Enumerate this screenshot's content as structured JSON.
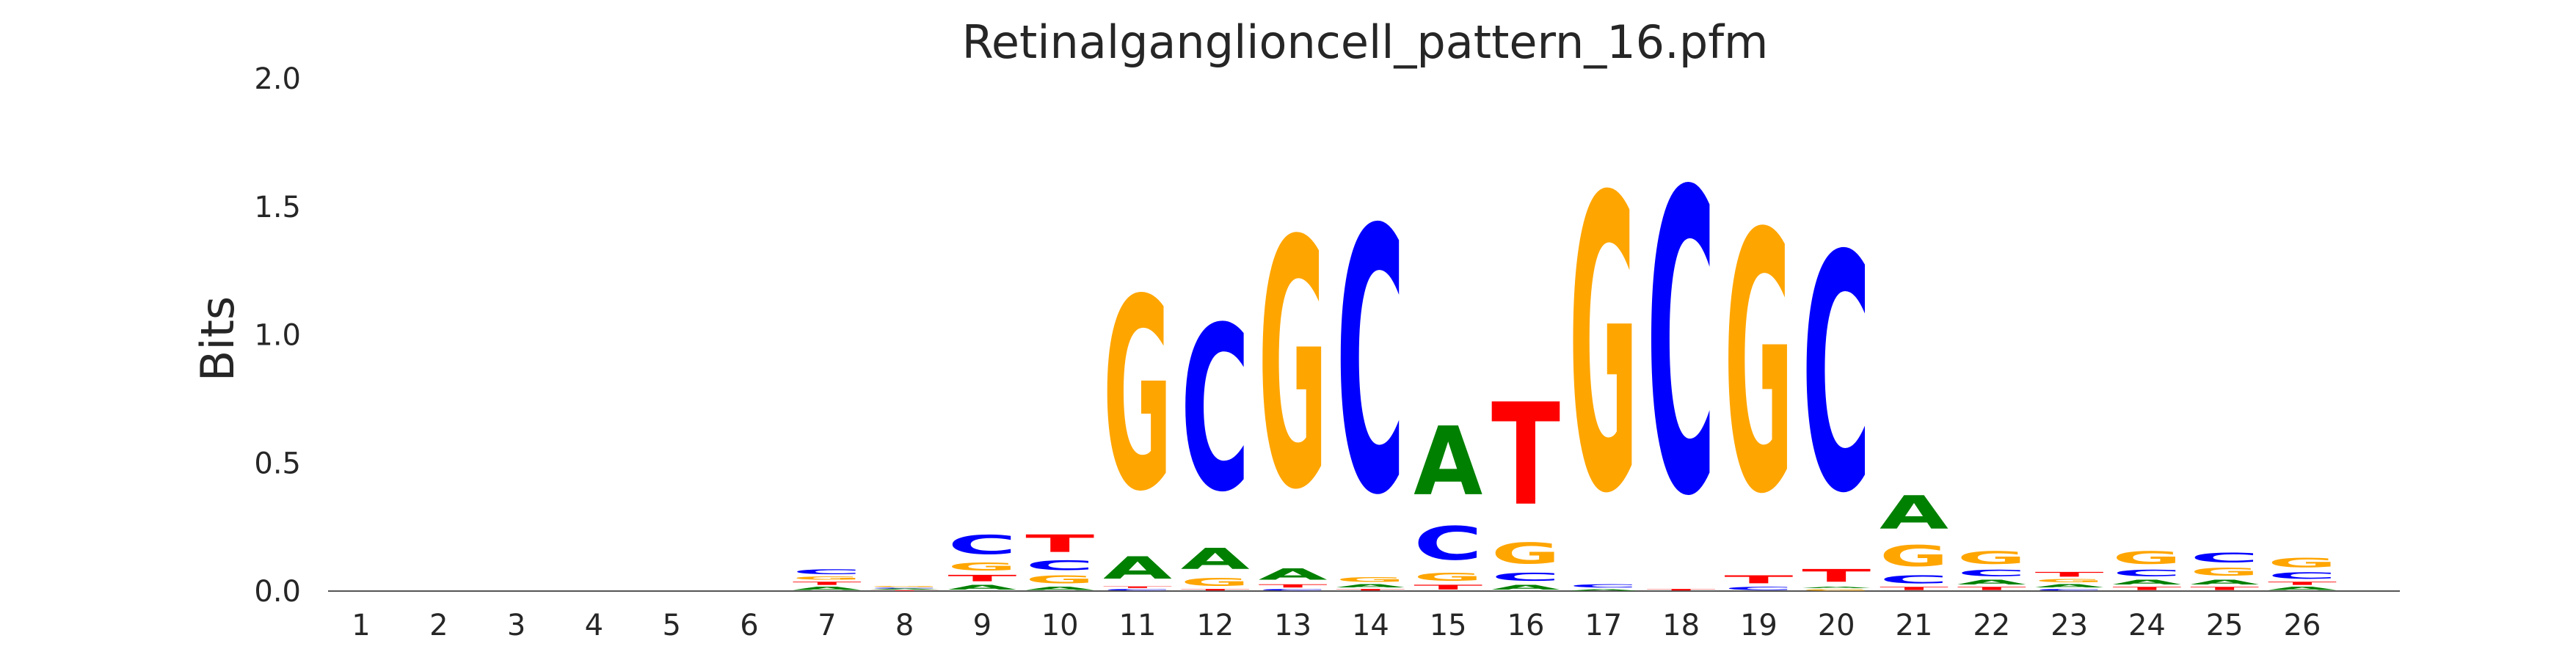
{
  "chart_data": {
    "type": "sequence-logo",
    "title": "Retinalganglioncell_pattern_16.pfm",
    "xlabel": "",
    "ylabel": "Bits",
    "ylim": [
      0,
      2.0
    ],
    "yticks": [
      "0.0",
      "0.5",
      "1.0",
      "1.5",
      "2.0"
    ],
    "xticks": [
      "1",
      "2",
      "3",
      "4",
      "5",
      "6",
      "7",
      "8",
      "9",
      "10",
      "11",
      "12",
      "13",
      "14",
      "15",
      "16",
      "17",
      "18",
      "19",
      "20",
      "21",
      "22",
      "23",
      "24",
      "25",
      "26"
    ],
    "grid": false,
    "letter_colors": {
      "A": "#008000",
      "C": "#0000ff",
      "G": "#ffa500",
      "T": "#ff0000"
    },
    "positions": [
      {
        "pos": 1,
        "stack": []
      },
      {
        "pos": 2,
        "stack": []
      },
      {
        "pos": 3,
        "stack": []
      },
      {
        "pos": 4,
        "stack": []
      },
      {
        "pos": 5,
        "stack": []
      },
      {
        "pos": 6,
        "stack": []
      },
      {
        "pos": 7,
        "stack": [
          {
            "b": "A",
            "h": 0.02
          },
          {
            "b": "T",
            "h": 0.02
          },
          {
            "b": "G",
            "h": 0.02
          },
          {
            "b": "C",
            "h": 0.03
          }
        ]
      },
      {
        "pos": 8,
        "stack": [
          {
            "b": "T",
            "h": 0.004
          },
          {
            "b": "A",
            "h": 0.005
          },
          {
            "b": "C",
            "h": 0.005
          },
          {
            "b": "G",
            "h": 0.006
          }
        ]
      },
      {
        "pos": 9,
        "stack": [
          {
            "b": "A",
            "h": 0.03
          },
          {
            "b": "T",
            "h": 0.04
          },
          {
            "b": "G",
            "h": 0.05
          },
          {
            "b": "C",
            "h": 0.12
          }
        ]
      },
      {
        "pos": 10,
        "stack": [
          {
            "b": "A",
            "h": 0.02
          },
          {
            "b": "G",
            "h": 0.05
          },
          {
            "b": "C",
            "h": 0.06
          },
          {
            "b": "T",
            "h": 0.11
          }
        ]
      },
      {
        "pos": 11,
        "stack": [
          {
            "b": "C",
            "h": 0.01
          },
          {
            "b": "T",
            "h": 0.01
          },
          {
            "b": "A",
            "h": 0.14
          },
          {
            "b": "G",
            "h": 1.2
          }
        ]
      },
      {
        "pos": 12,
        "stack": [
          {
            "b": "T",
            "h": 0.01
          },
          {
            "b": "G",
            "h": 0.05
          },
          {
            "b": "A",
            "h": 0.13
          },
          {
            "b": "C",
            "h": 1.03
          }
        ]
      },
      {
        "pos": 13,
        "stack": [
          {
            "b": "C",
            "h": 0.01
          },
          {
            "b": "T",
            "h": 0.02
          },
          {
            "b": "A",
            "h": 0.07
          },
          {
            "b": "G",
            "h": 1.55
          }
        ]
      },
      {
        "pos": 14,
        "stack": [
          {
            "b": "T",
            "h": 0.01
          },
          {
            "b": "A",
            "h": 0.02
          },
          {
            "b": "G",
            "h": 0.03
          },
          {
            "b": "C",
            "h": 1.65
          }
        ]
      },
      {
        "pos": 15,
        "stack": [
          {
            "b": "T",
            "h": 0.03
          },
          {
            "b": "G",
            "h": 0.05
          },
          {
            "b": "C",
            "h": 0.21
          },
          {
            "b": "A",
            "h": 0.43
          }
        ]
      },
      {
        "pos": 16,
        "stack": [
          {
            "b": "A",
            "h": 0.03
          },
          {
            "b": "C",
            "h": 0.05
          },
          {
            "b": "G",
            "h": 0.13
          },
          {
            "b": "T",
            "h": 0.64
          }
        ]
      },
      {
        "pos": 17,
        "stack": [
          {
            "b": "A",
            "h": 0.01
          },
          {
            "b": "C",
            "h": 0.02
          },
          {
            "b": "G",
            "h": 1.84
          }
        ]
      },
      {
        "pos": 18,
        "stack": [
          {
            "b": "T",
            "h": 0.01
          },
          {
            "b": "C",
            "h": 1.89
          }
        ]
      },
      {
        "pos": 19,
        "stack": [
          {
            "b": "C",
            "h": 0.02
          },
          {
            "b": "T",
            "h": 0.05
          },
          {
            "b": "G",
            "h": 1.62
          }
        ]
      },
      {
        "pos": 20,
        "stack": [
          {
            "b": "G",
            "h": 0.01
          },
          {
            "b": "A",
            "h": 0.01
          },
          {
            "b": "T",
            "h": 0.08
          },
          {
            "b": "C",
            "h": 1.48
          }
        ]
      },
      {
        "pos": 21,
        "stack": [
          {
            "b": "T",
            "h": 0.02
          },
          {
            "b": "C",
            "h": 0.05
          },
          {
            "b": "G",
            "h": 0.13
          },
          {
            "b": "A",
            "h": 0.21
          }
        ]
      },
      {
        "pos": 22,
        "stack": [
          {
            "b": "T",
            "h": 0.02
          },
          {
            "b": "A",
            "h": 0.03
          },
          {
            "b": "C",
            "h": 0.04
          },
          {
            "b": "G",
            "h": 0.08
          }
        ]
      },
      {
        "pos": 23,
        "stack": [
          {
            "b": "C",
            "h": 0.01
          },
          {
            "b": "A",
            "h": 0.02
          },
          {
            "b": "G",
            "h": 0.02
          },
          {
            "b": "T",
            "h": 0.03
          }
        ]
      },
      {
        "pos": 24,
        "stack": [
          {
            "b": "T",
            "h": 0.02
          },
          {
            "b": "A",
            "h": 0.03
          },
          {
            "b": "C",
            "h": 0.04
          },
          {
            "b": "G",
            "h": 0.08
          }
        ]
      },
      {
        "pos": 25,
        "stack": [
          {
            "b": "T",
            "h": 0.02
          },
          {
            "b": "A",
            "h": 0.03
          },
          {
            "b": "G",
            "h": 0.05
          },
          {
            "b": "C",
            "h": 0.06
          }
        ]
      },
      {
        "pos": 26,
        "stack": [
          {
            "b": "A",
            "h": 0.02
          },
          {
            "b": "T",
            "h": 0.02
          },
          {
            "b": "C",
            "h": 0.04
          },
          {
            "b": "G",
            "h": 0.06
          }
        ]
      }
    ]
  }
}
